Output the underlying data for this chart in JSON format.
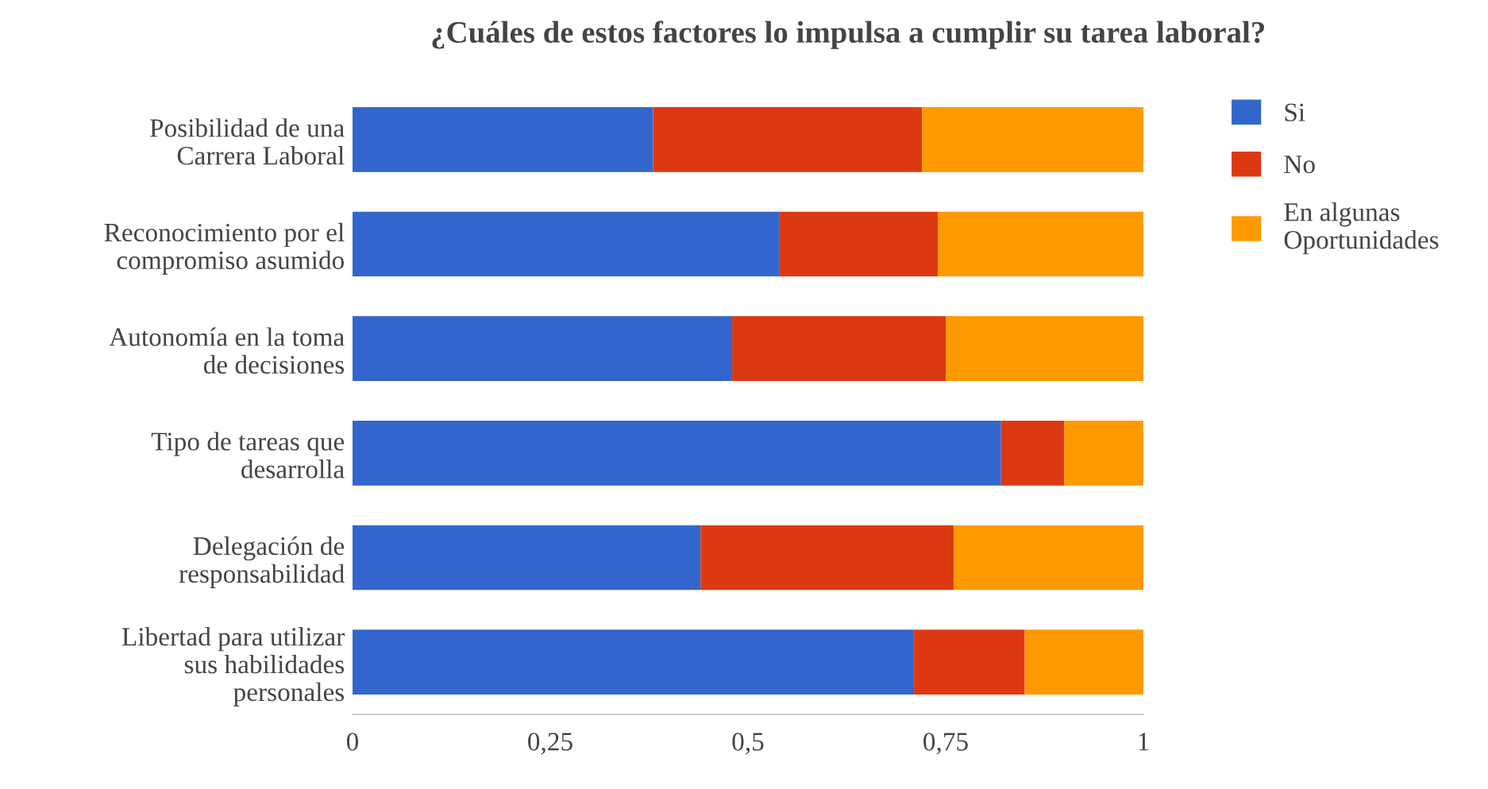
{
  "chart_data": {
    "type": "bar",
    "title": "¿Cuáles de estos factores lo impulsa a cumplir su tarea laboral?",
    "orientation": "horizontal",
    "stacked": true,
    "categories": [
      "Posibilidad de una Carrera Laboral",
      "Reconocimiento por el compromiso asumido",
      "Autonomía en la toma de decisiones",
      "Tipo de tareas que desarrolla",
      "Delegación de responsabilidad",
      "Libertad para utilizar sus habilidades personales"
    ],
    "series": [
      {
        "name": "Si",
        "color": "#3366cc",
        "values": [
          0.38,
          0.54,
          0.48,
          0.82,
          0.44,
          0.71
        ]
      },
      {
        "name": "No",
        "color": "#dc3912",
        "values": [
          0.34,
          0.2,
          0.27,
          0.08,
          0.32,
          0.14
        ]
      },
      {
        "name": "En algunas Oportunidades",
        "color": "#ff9900",
        "values": [
          0.28,
          0.26,
          0.25,
          0.1,
          0.24,
          0.15
        ]
      }
    ],
    "xlim": [
      0,
      1
    ],
    "xticks": [
      0,
      {
        "value": 0.25,
        "label": "0,25"
      },
      {
        "value": 0.5,
        "label": "0,5"
      },
      {
        "value": 0.75,
        "label": "0,75"
      },
      1
    ],
    "legend": "top right",
    "grid": false
  }
}
